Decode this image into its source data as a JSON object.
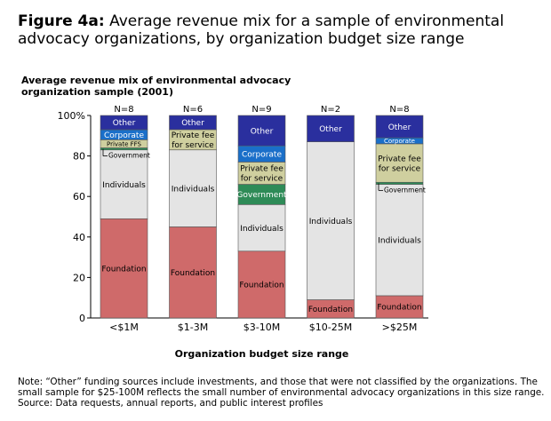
{
  "figure": {
    "label": "Figure 4a:",
    "title": "Average revenue mix for a sample of environmental advocacy organizations, by organization budget size range"
  },
  "chart_data": {
    "type": "bar",
    "stacked": true,
    "title": "Average revenue mix of environmental advocacy organization sample (2001)",
    "xlabel": "Organization budget size range",
    "ylabel": "",
    "ylim": [
      0,
      100
    ],
    "yticks": [
      "0",
      "20",
      "40",
      "60",
      "80",
      "100%"
    ],
    "categories": [
      "<$1M",
      "$1-3M",
      "$3-10M",
      "$10-25M",
      ">$25M"
    ],
    "n_labels": [
      "N=8",
      "N=6",
      "N=9",
      "N=2",
      "N=8"
    ],
    "series": [
      {
        "name": "Foundation",
        "color": "#cf6a6a",
        "values": [
          49,
          45,
          33,
          9,
          11
        ]
      },
      {
        "name": "Individuals",
        "color": "#e4e4e4",
        "values": [
          34,
          38,
          23,
          78,
          55
        ]
      },
      {
        "name": "Government",
        "color": "#2e8b57",
        "values": [
          1,
          0,
          10,
          0,
          1
        ]
      },
      {
        "name": "Private fee for service",
        "color": "#cfcf9f",
        "values": [
          4,
          10,
          11,
          0,
          19
        ]
      },
      {
        "name": "Corporate",
        "color": "#1a6fc9",
        "values": [
          5,
          0,
          8,
          0,
          3
        ]
      },
      {
        "name": "Other",
        "color": "#2a2f9e",
        "values": [
          7,
          7,
          15,
          13,
          11
        ]
      }
    ],
    "segment_labels": [
      [
        "Foundation",
        "Individuals",
        "Government",
        "Private FFS",
        "Corporate",
        "Other"
      ],
      [
        "Foundation",
        "Individuals",
        "",
        "Private fee\nfor service",
        "",
        "Other"
      ],
      [
        "Foundation",
        "Individuals",
        "Government",
        "Private fee\nfor service",
        "Corporate",
        "Other"
      ],
      [
        "Foundation",
        "Individuals",
        "",
        "",
        "",
        "Other"
      ],
      [
        "Foundation",
        "Individuals",
        "Government",
        "Private fee\nfor service",
        "Corporate",
        "Other"
      ]
    ]
  },
  "note": {
    "line1": "Note: “Other” funding sources include investments, and those that were not classified by the organizations. The",
    "line2": "small sample for $25-100M reflects the small number of environmental advocacy organizations in this size range.",
    "line3": "Source: Data requests, annual reports, and public interest profiles"
  }
}
